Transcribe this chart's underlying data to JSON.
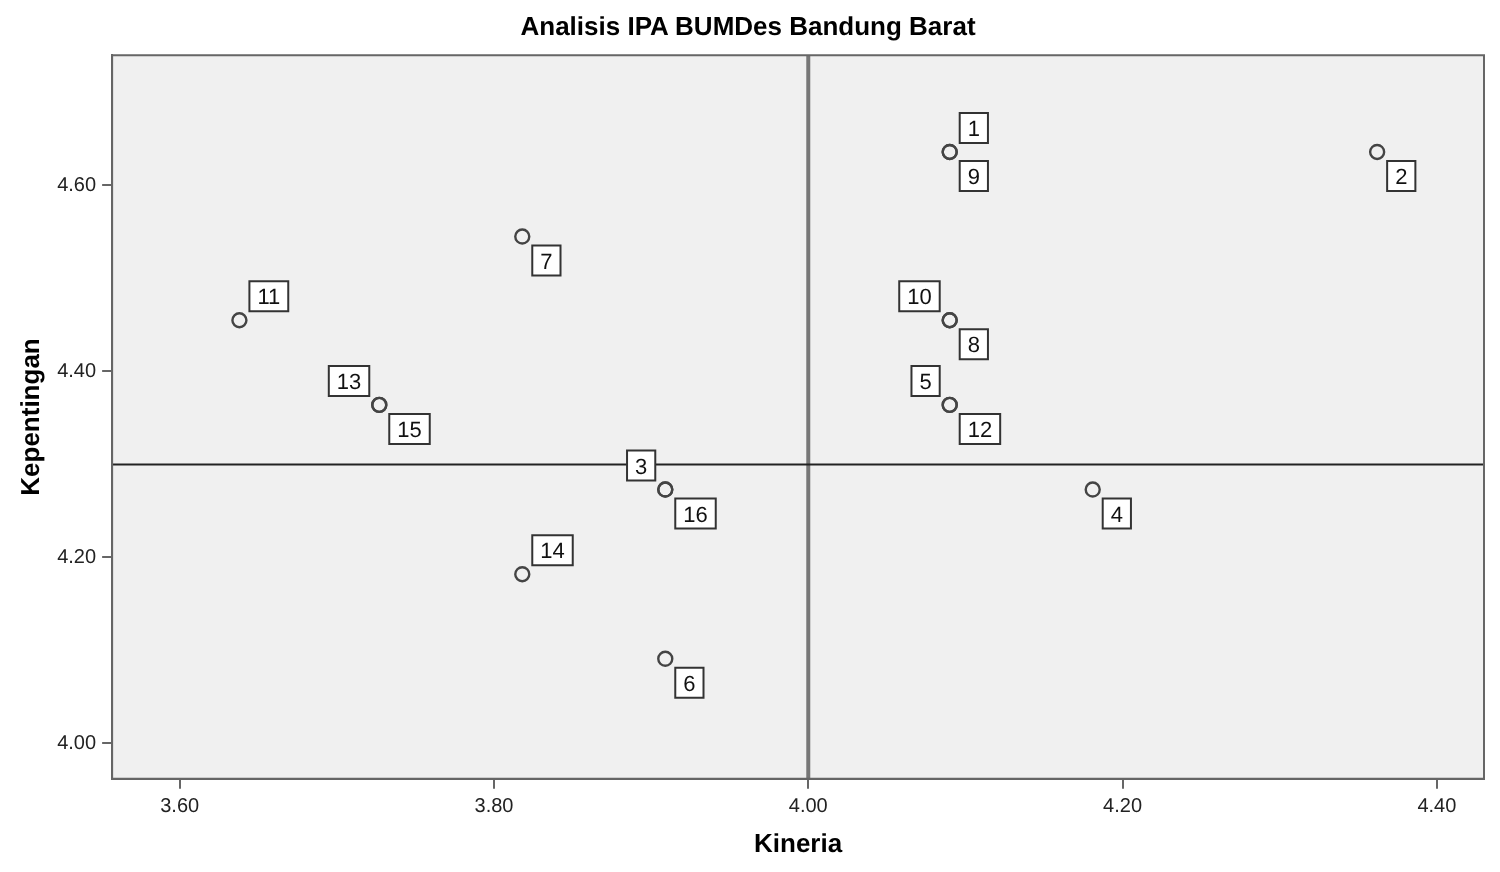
{
  "chart_data": {
    "type": "scatter",
    "title": "Analisis IPA BUMDes Bandung Barat",
    "xlabel": "Kineria",
    "ylabel": "Kepentingan",
    "x": [
      4.09,
      4.362,
      3.909,
      4.181,
      4.09,
      3.909,
      3.818,
      4.09,
      4.09,
      4.09,
      3.638,
      4.09,
      3.727,
      3.818,
      3.727,
      3.909
    ],
    "series": [
      {
        "color": "#444444",
        "values": [
          4.636,
          4.636,
          4.273,
          4.273,
          4.364,
          4.091,
          4.545,
          4.455,
          4.636,
          4.455,
          4.455,
          4.364,
          4.364,
          4.182,
          4.364,
          4.273
        ]
      }
    ],
    "annotations": [
      {
        "text": "1",
        "x": 4.09,
        "y": 4.636
      },
      {
        "text": "2",
        "x": 4.362,
        "y": 4.636
      },
      {
        "text": "3",
        "x": 3.909,
        "y": 4.273
      },
      {
        "text": "4",
        "x": 4.181,
        "y": 4.273
      },
      {
        "text": "5",
        "x": 4.09,
        "y": 4.364
      },
      {
        "text": "6",
        "x": 3.909,
        "y": 4.091
      },
      {
        "text": "7",
        "x": 3.818,
        "y": 4.545
      },
      {
        "text": "8",
        "x": 4.09,
        "y": 4.455
      },
      {
        "text": "9",
        "x": 4.09,
        "y": 4.636
      },
      {
        "text": "10",
        "x": 4.09,
        "y": 4.455
      },
      {
        "text": "11",
        "x": 3.638,
        "y": 4.455
      },
      {
        "text": "12",
        "x": 4.09,
        "y": 4.364
      },
      {
        "text": "13",
        "x": 3.727,
        "y": 4.364
      },
      {
        "text": "14",
        "x": 3.818,
        "y": 4.182
      },
      {
        "text": "15",
        "x": 3.727,
        "y": 4.364
      },
      {
        "text": "16",
        "x": 3.909,
        "y": 4.273
      }
    ],
    "xlim": [
      3.557,
      4.43
    ],
    "ylim": [
      3.962,
      4.74
    ],
    "xticks": [
      {
        "value": 3.6,
        "label": "3.60"
      },
      {
        "value": 3.8,
        "label": "3.80"
      },
      {
        "value": 4.0,
        "label": "4.00"
      },
      {
        "value": 4.2,
        "label": "4.20"
      },
      {
        "value": 4.4,
        "label": "4.40"
      }
    ],
    "yticks": [
      {
        "value": 4.0,
        "label": "4.00"
      },
      {
        "value": 4.2,
        "label": "4.20"
      },
      {
        "value": 4.4,
        "label": "4.40"
      },
      {
        "value": 4.6,
        "label": "4.60"
      }
    ],
    "ref_lines": [
      {
        "axis": "x",
        "value": 4.0,
        "color": "#777777"
      },
      {
        "axis": "y",
        "value": 4.3,
        "color": "#222222"
      }
    ],
    "marker": "circle"
  }
}
